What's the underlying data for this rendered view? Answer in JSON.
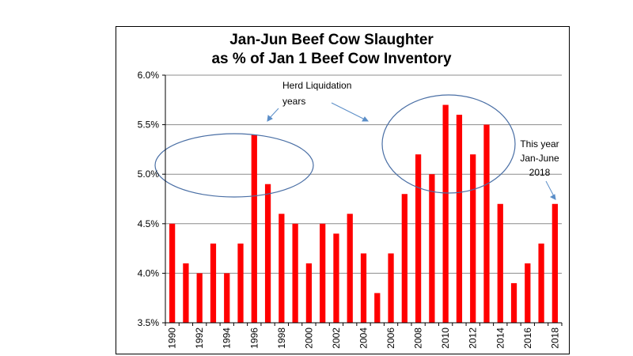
{
  "chart_data": {
    "type": "bar",
    "title": [
      "Jan-Jun Beef Cow Slaughter",
      "as % of Jan 1 Beef Cow Inventory"
    ],
    "categories": [
      "1990",
      "1991",
      "1992",
      "1993",
      "1994",
      "1995",
      "1996",
      "1997",
      "1998",
      "1999",
      "2000",
      "2001",
      "2002",
      "2003",
      "2004",
      "2005",
      "2006",
      "2007",
      "2008",
      "2009",
      "2010",
      "2011",
      "2012",
      "2013",
      "2014",
      "2015",
      "2016",
      "2017",
      "2018"
    ],
    "values": [
      4.5,
      4.1,
      4.0,
      4.3,
      4.0,
      4.3,
      5.4,
      4.9,
      4.6,
      4.5,
      4.1,
      4.5,
      4.4,
      4.6,
      4.2,
      3.8,
      4.2,
      4.8,
      5.2,
      5.0,
      5.7,
      5.6,
      5.2,
      5.5,
      4.7,
      3.9,
      4.1,
      4.3,
      4.7
    ],
    "x_tick_labels": [
      "1990",
      "1992",
      "1994",
      "1996",
      "1998",
      "2000",
      "2002",
      "2004",
      "2006",
      "2008",
      "2010",
      "2012",
      "2014",
      "2016",
      "2018"
    ],
    "y_tick_labels": [
      "3.5%",
      "4.0%",
      "4.5%",
      "5.0%",
      "5.5%",
      "6.0%"
    ],
    "y_ticks": [
      3.5,
      4.0,
      4.5,
      5.0,
      5.5,
      6.0
    ],
    "ylim": [
      3.5,
      6.0
    ],
    "xlabel": "",
    "ylabel": "",
    "grid": "horizontal",
    "bar_color": "#ff0000",
    "annotations": {
      "herd_label": [
        "Herd Liquidation",
        "years"
      ],
      "this_year_label": [
        "This year",
        "Jan-June",
        "2018"
      ],
      "ellipse_color": "#4a6fa5",
      "arrow_color": "#5b8ec8"
    }
  }
}
